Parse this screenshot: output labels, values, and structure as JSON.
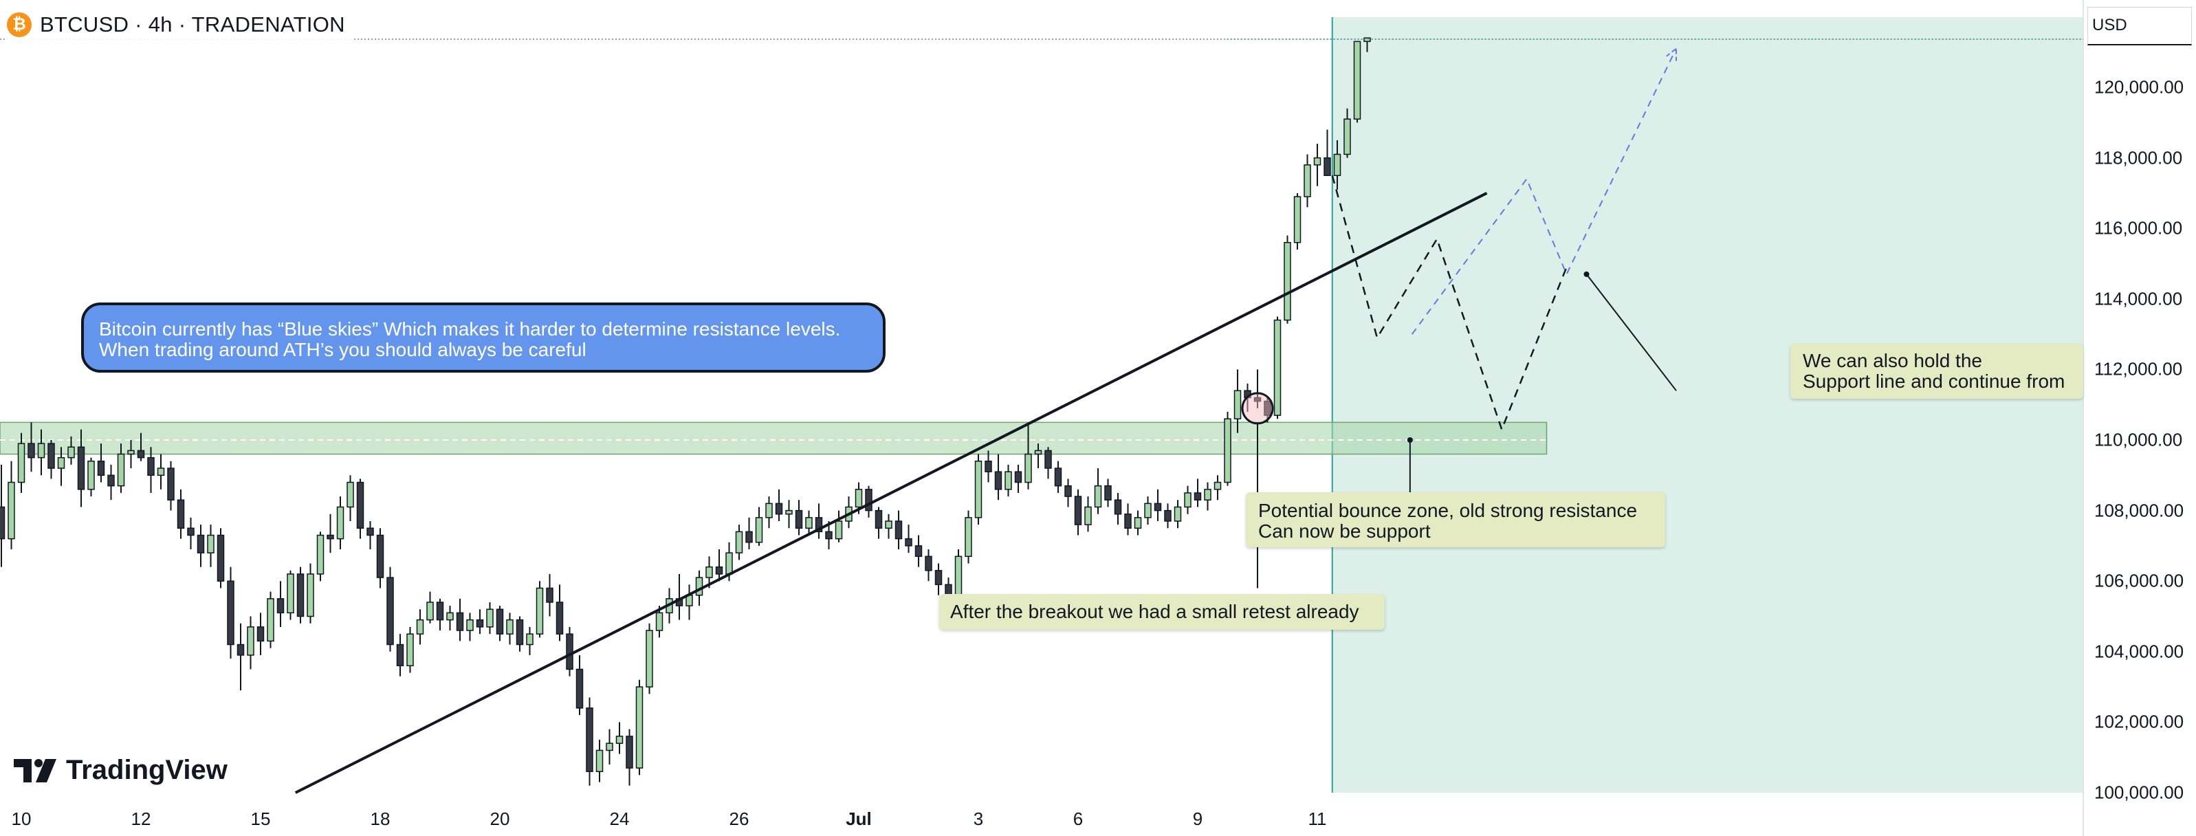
{
  "header": {
    "title": "BTCUSD · 4h · TRADENATION",
    "coin_icon": "bitcoin-icon",
    "coin_symbol": "₿"
  },
  "currency_label": "USD",
  "logo_text": "TradingView",
  "colors": {
    "up_candle": "#a5d6a7",
    "down_candle": "#363a45",
    "resistance_zone": "#a5d6a7",
    "forecast_area": "#dcefe9",
    "callout_blue": "#6495ec",
    "note_bg": "#e4ebc3",
    "projection_blue": "#5c7de0"
  },
  "annotations": {
    "blue_skies_line1": "Bitcoin currently has “Blue skies” Which makes it harder to determine resistance levels.",
    "blue_skies_line2": "When trading around ATH’s you should always be careful",
    "retest": "After the breakout we had a small retest already",
    "bounce_line1": "Potential bounce zone, old strong resistance",
    "bounce_line2": "Can now be support",
    "support_line1": "We can also hold the",
    "support_line2": "Support line and continue from"
  },
  "chart_data": {
    "type": "candlestick",
    "symbol": "BTCUSD",
    "interval": "4h",
    "yaxis": {
      "ticks": [
        "120,000.00",
        "118,000.00",
        "116,000.00",
        "114,000.00",
        "112,000.00",
        "110,000.00",
        "108,000.00",
        "106,000.00",
        "104,000.00",
        "102,000.00",
        "100,000.00"
      ],
      "ylim": [
        100000,
        122000
      ]
    },
    "xaxis": {
      "ticks": [
        {
          "label": "10",
          "idx": 2
        },
        {
          "label": "12",
          "idx": 14
        },
        {
          "label": "15",
          "idx": 26
        },
        {
          "label": "18",
          "idx": 38
        },
        {
          "label": "20",
          "idx": 50
        },
        {
          "label": "24",
          "idx": 62
        },
        {
          "label": "26",
          "idx": 74
        },
        {
          "label": "Jul",
          "idx": 86,
          "month": true
        },
        {
          "label": "3",
          "idx": 98
        },
        {
          "label": "6",
          "idx": 108
        },
        {
          "label": "9",
          "idx": 120
        },
        {
          "label": "11",
          "idx": 132
        }
      ],
      "forecast_start_idx": 133.5
    },
    "candles": [
      [
        108100,
        109300,
        106400,
        107200
      ],
      [
        107200,
        109400,
        106900,
        108800
      ],
      [
        108800,
        110200,
        108500,
        109900
      ],
      [
        109900,
        110500,
        109100,
        109500
      ],
      [
        109500,
        110300,
        109000,
        109900
      ],
      [
        109900,
        110000,
        108900,
        109200
      ],
      [
        109200,
        109800,
        108700,
        109500
      ],
      [
        109500,
        110100,
        109300,
        109800
      ],
      [
        109800,
        110300,
        108100,
        108600
      ],
      [
        108600,
        109500,
        108400,
        109400
      ],
      [
        109400,
        109900,
        108800,
        109000
      ],
      [
        109000,
        109300,
        108300,
        108700
      ],
      [
        108700,
        109900,
        108500,
        109600
      ],
      [
        109600,
        110000,
        109200,
        109700
      ],
      [
        109700,
        110200,
        109400,
        109500
      ],
      [
        109500,
        109800,
        108500,
        109000
      ],
      [
        109000,
        109600,
        108600,
        109200
      ],
      [
        109200,
        109400,
        108000,
        108300
      ],
      [
        108300,
        108600,
        107200,
        107500
      ],
      [
        107500,
        107800,
        106900,
        107300
      ],
      [
        107300,
        107600,
        106400,
        106800
      ],
      [
        106800,
        107600,
        106400,
        107300
      ],
      [
        107300,
        107500,
        105800,
        106000
      ],
      [
        106000,
        106400,
        103800,
        104200
      ],
      [
        104200,
        104800,
        102900,
        103900
      ],
      [
        103900,
        105000,
        103500,
        104700
      ],
      [
        104700,
        105100,
        103900,
        104300
      ],
      [
        104300,
        105700,
        104100,
        105500
      ],
      [
        105500,
        106000,
        104700,
        105100
      ],
      [
        105100,
        106300,
        104900,
        106200
      ],
      [
        106200,
        106400,
        104800,
        105000
      ],
      [
        105000,
        106500,
        104800,
        106200
      ],
      [
        106200,
        107400,
        106000,
        107300
      ],
      [
        107300,
        107900,
        106800,
        107200
      ],
      [
        107200,
        108400,
        106900,
        108100
      ],
      [
        108100,
        109000,
        107700,
        108800
      ],
      [
        108800,
        108900,
        107200,
        107500
      ],
      [
        107500,
        107700,
        106900,
        107300
      ],
      [
        107300,
        107500,
        105800,
        106100
      ],
      [
        106100,
        106400,
        104000,
        104200
      ],
      [
        104200,
        104500,
        103300,
        103600
      ],
      [
        103600,
        104700,
        103400,
        104500
      ],
      [
        104500,
        105200,
        104200,
        104900
      ],
      [
        104900,
        105700,
        104800,
        105400
      ],
      [
        105400,
        105500,
        104600,
        104900
      ],
      [
        104900,
        105300,
        104600,
        105100
      ],
      [
        105100,
        105500,
        104300,
        104600
      ],
      [
        104600,
        105100,
        104300,
        104900
      ],
      [
        104900,
        105200,
        104500,
        104700
      ],
      [
        104700,
        105400,
        104500,
        105200
      ],
      [
        105200,
        105300,
        104300,
        104500
      ],
      [
        104500,
        105100,
        104200,
        104900
      ],
      [
        104900,
        105000,
        104000,
        104200
      ],
      [
        104200,
        104700,
        103900,
        104500
      ],
      [
        104500,
        106000,
        104400,
        105800
      ],
      [
        105800,
        106200,
        105000,
        105400
      ],
      [
        105400,
        105900,
        104300,
        104500
      ],
      [
        104500,
        104700,
        103300,
        103500
      ],
      [
        103500,
        103900,
        102200,
        102400
      ],
      [
        102400,
        102700,
        100200,
        100600
      ],
      [
        100600,
        101500,
        100300,
        101200
      ],
      [
        101200,
        101800,
        100800,
        101400
      ],
      [
        101400,
        102000,
        101100,
        101600
      ],
      [
        101600,
        101800,
        100200,
        100700
      ],
      [
        100700,
        103200,
        100500,
        103000
      ],
      [
        103000,
        104800,
        102800,
        104600
      ],
      [
        104600,
        105300,
        104400,
        105100
      ],
      [
        105100,
        105800,
        104800,
        105500
      ],
      [
        105500,
        106200,
        104900,
        105300
      ],
      [
        105300,
        105900,
        104900,
        105600
      ],
      [
        105600,
        106300,
        105300,
        106100
      ],
      [
        106100,
        106700,
        105800,
        106400
      ],
      [
        106400,
        106900,
        106000,
        106200
      ],
      [
        106200,
        107100,
        106000,
        106800
      ],
      [
        106800,
        107600,
        106600,
        107400
      ],
      [
        107400,
        107800,
        106900,
        107100
      ],
      [
        107100,
        108100,
        107000,
        107800
      ],
      [
        107800,
        108400,
        107500,
        108200
      ],
      [
        108200,
        108600,
        107700,
        107900
      ],
      [
        107900,
        108300,
        107500,
        108000
      ],
      [
        108000,
        108300,
        107300,
        107500
      ],
      [
        107500,
        108000,
        107300,
        107800
      ],
      [
        107800,
        108200,
        107200,
        107400
      ],
      [
        107400,
        107700,
        106900,
        107200
      ],
      [
        107200,
        108000,
        107100,
        107700
      ],
      [
        107700,
        108400,
        107500,
        108100
      ],
      [
        108100,
        108800,
        107900,
        108600
      ],
      [
        108600,
        108700,
        107800,
        108000
      ],
      [
        108000,
        108100,
        107200,
        107500
      ],
      [
        107500,
        107900,
        107200,
        107700
      ],
      [
        107700,
        108000,
        106900,
        107200
      ],
      [
        107200,
        107600,
        106800,
        107000
      ],
      [
        107000,
        107300,
        106400,
        106700
      ],
      [
        106700,
        106900,
        106000,
        106300
      ],
      [
        106300,
        106500,
        105600,
        105900
      ],
      [
        105900,
        106100,
        105200,
        105600
      ],
      [
        105600,
        106900,
        105400,
        106700
      ],
      [
        106700,
        108000,
        106500,
        107800
      ],
      [
        107800,
        109600,
        107600,
        109400
      ],
      [
        109400,
        109700,
        108800,
        109100
      ],
      [
        109100,
        109600,
        108300,
        108600
      ],
      [
        108600,
        109300,
        108400,
        109100
      ],
      [
        109100,
        109300,
        108500,
        108800
      ],
      [
        108800,
        110500,
        108600,
        109600
      ],
      [
        109600,
        109900,
        109200,
        109700
      ],
      [
        109700,
        109800,
        108900,
        109200
      ],
      [
        109200,
        109400,
        108500,
        108700
      ],
      [
        108700,
        108900,
        108100,
        108400
      ],
      [
        108400,
        108600,
        107300,
        107600
      ],
      [
        107600,
        108400,
        107400,
        108100
      ],
      [
        108100,
        109200,
        107900,
        108700
      ],
      [
        108700,
        108900,
        108100,
        108300
      ],
      [
        108300,
        108500,
        107600,
        107900
      ],
      [
        107900,
        108200,
        107300,
        107500
      ],
      [
        107500,
        108000,
        107300,
        107800
      ],
      [
        107800,
        108400,
        107600,
        108200
      ],
      [
        108200,
        108600,
        107700,
        108000
      ],
      [
        108000,
        108200,
        107500,
        107700
      ],
      [
        107700,
        108300,
        107500,
        108100
      ],
      [
        108100,
        108700,
        107900,
        108500
      ],
      [
        108500,
        108900,
        108100,
        108300
      ],
      [
        108300,
        108800,
        108000,
        108600
      ],
      [
        108600,
        109000,
        108300,
        108800
      ],
      [
        108800,
        110800,
        108700,
        110600
      ],
      [
        110600,
        112000,
        110200,
        111400
      ],
      [
        111400,
        111600,
        110800,
        111200
      ],
      [
        111200,
        112000,
        110900,
        111100
      ],
      [
        111100,
        111200,
        110500,
        110700
      ],
      [
        110700,
        113500,
        110600,
        113400
      ],
      [
        113400,
        115800,
        113300,
        115600
      ],
      [
        115600,
        117000,
        115400,
        116900
      ],
      [
        116900,
        118100,
        116600,
        117800
      ],
      [
        117800,
        118400,
        117200,
        118000
      ],
      [
        118000,
        118800,
        117500,
        117500
      ],
      [
        117500,
        118500,
        117100,
        118100
      ],
      [
        118100,
        119400,
        118000,
        119100
      ],
      [
        119100,
        121300,
        119000,
        121300
      ],
      [
        121300,
        121400,
        121000,
        121400
      ]
    ],
    "resistance_zone": {
      "from": 109600,
      "to": 110500,
      "mid": 110000,
      "x_end_idx": 155
    },
    "trendline": {
      "points": [
        [
          29.5,
          100000
        ],
        [
          149,
          117000
        ]
      ]
    },
    "projection_primary": {
      "style": "dashed",
      "points": [
        [
          133.5,
          117500
        ],
        [
          138,
          112900
        ],
        [
          144,
          115700
        ],
        [
          150.5,
          110300
        ],
        [
          157,
          114900
        ]
      ]
    },
    "projection_alternative": {
      "style": "dashed-blue",
      "points": [
        [
          141.5,
          113000
        ],
        [
          153,
          117400
        ],
        [
          157,
          114700
        ],
        [
          168,
          121100
        ]
      ]
    },
    "retest_marker": {
      "idx": 126,
      "price": 110900
    },
    "leaders": {
      "retest": [
        [
          126,
          110500
        ],
        [
          126,
          105800
        ]
      ],
      "bounce": [
        [
          141.3,
          110000
        ],
        [
          141.3,
          107500
        ]
      ],
      "support": [
        [
          159,
          114700
        ],
        [
          168,
          111400
        ]
      ]
    }
  }
}
